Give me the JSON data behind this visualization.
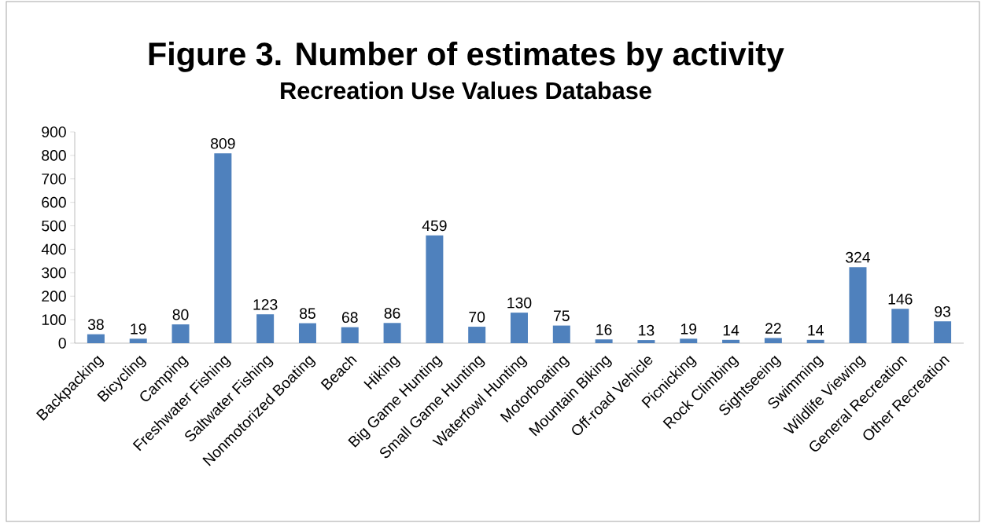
{
  "chart_data": {
    "type": "bar",
    "title": "Figure 3. Number of estimates by activity",
    "subtitle": "Recreation Use Values Database",
    "categories": [
      "Backpacking",
      "Bicycling",
      "Camping",
      "Freshwater Fishing",
      "Saltwater Fishing",
      "Nonmotorized Boating",
      "Beach",
      "Hiking",
      "Big Game Hunting",
      "Small Game Hunting",
      "Waterfowl Hunting",
      "Motorboating",
      "Mountain Biking",
      "Off-road Vehicle",
      "Picnicking",
      "Rock Climbing",
      "Sightseeing",
      "Swimming",
      "Wildlife Viewing",
      "General Recreation",
      "Other Recreation"
    ],
    "values": [
      38,
      19,
      80,
      809,
      123,
      85,
      68,
      86,
      459,
      70,
      130,
      75,
      16,
      13,
      19,
      14,
      22,
      14,
      324,
      146,
      93
    ],
    "color": "#4f81bd",
    "data_labels": true,
    "ylim": [
      0,
      900
    ],
    "yticks": [
      0,
      100,
      200,
      300,
      400,
      500,
      600,
      700,
      800,
      900
    ]
  }
}
